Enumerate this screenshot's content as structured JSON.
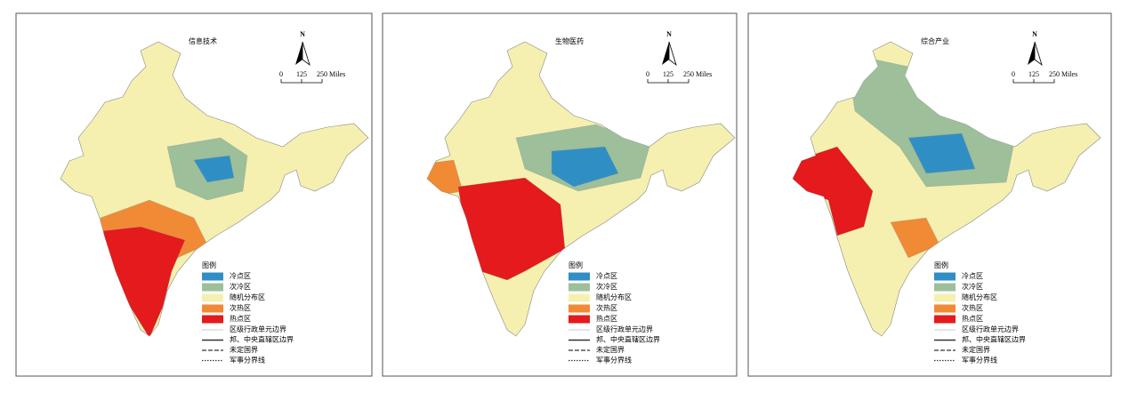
{
  "panels": [
    {
      "title": "信息技术"
    },
    {
      "title": "生物医药"
    },
    {
      "title": "综合产业"
    }
  ],
  "north_arrow": "N",
  "scale_bar": {
    "ticks": [
      0,
      125,
      {
        "value": 250,
        "label": "250 Miles"
      }
    ]
  },
  "legend": {
    "title": "图例",
    "items": [
      {
        "label": "冷点区",
        "color": "#2f8fc4"
      },
      {
        "label": "次冷区",
        "color": "#9dbf9a"
      },
      {
        "label": "随机分布区",
        "color": "#f5f0b0"
      },
      {
        "label": "次热区",
        "color": "#f08a35"
      },
      {
        "label": "热点区",
        "color": "#e41a1c"
      }
    ],
    "lines": [
      {
        "label": "区级行政单元边界"
      },
      {
        "label": "邦、中央直辖区边界"
      },
      {
        "label": "未定国界"
      },
      {
        "label": "军事分界线"
      }
    ]
  }
}
